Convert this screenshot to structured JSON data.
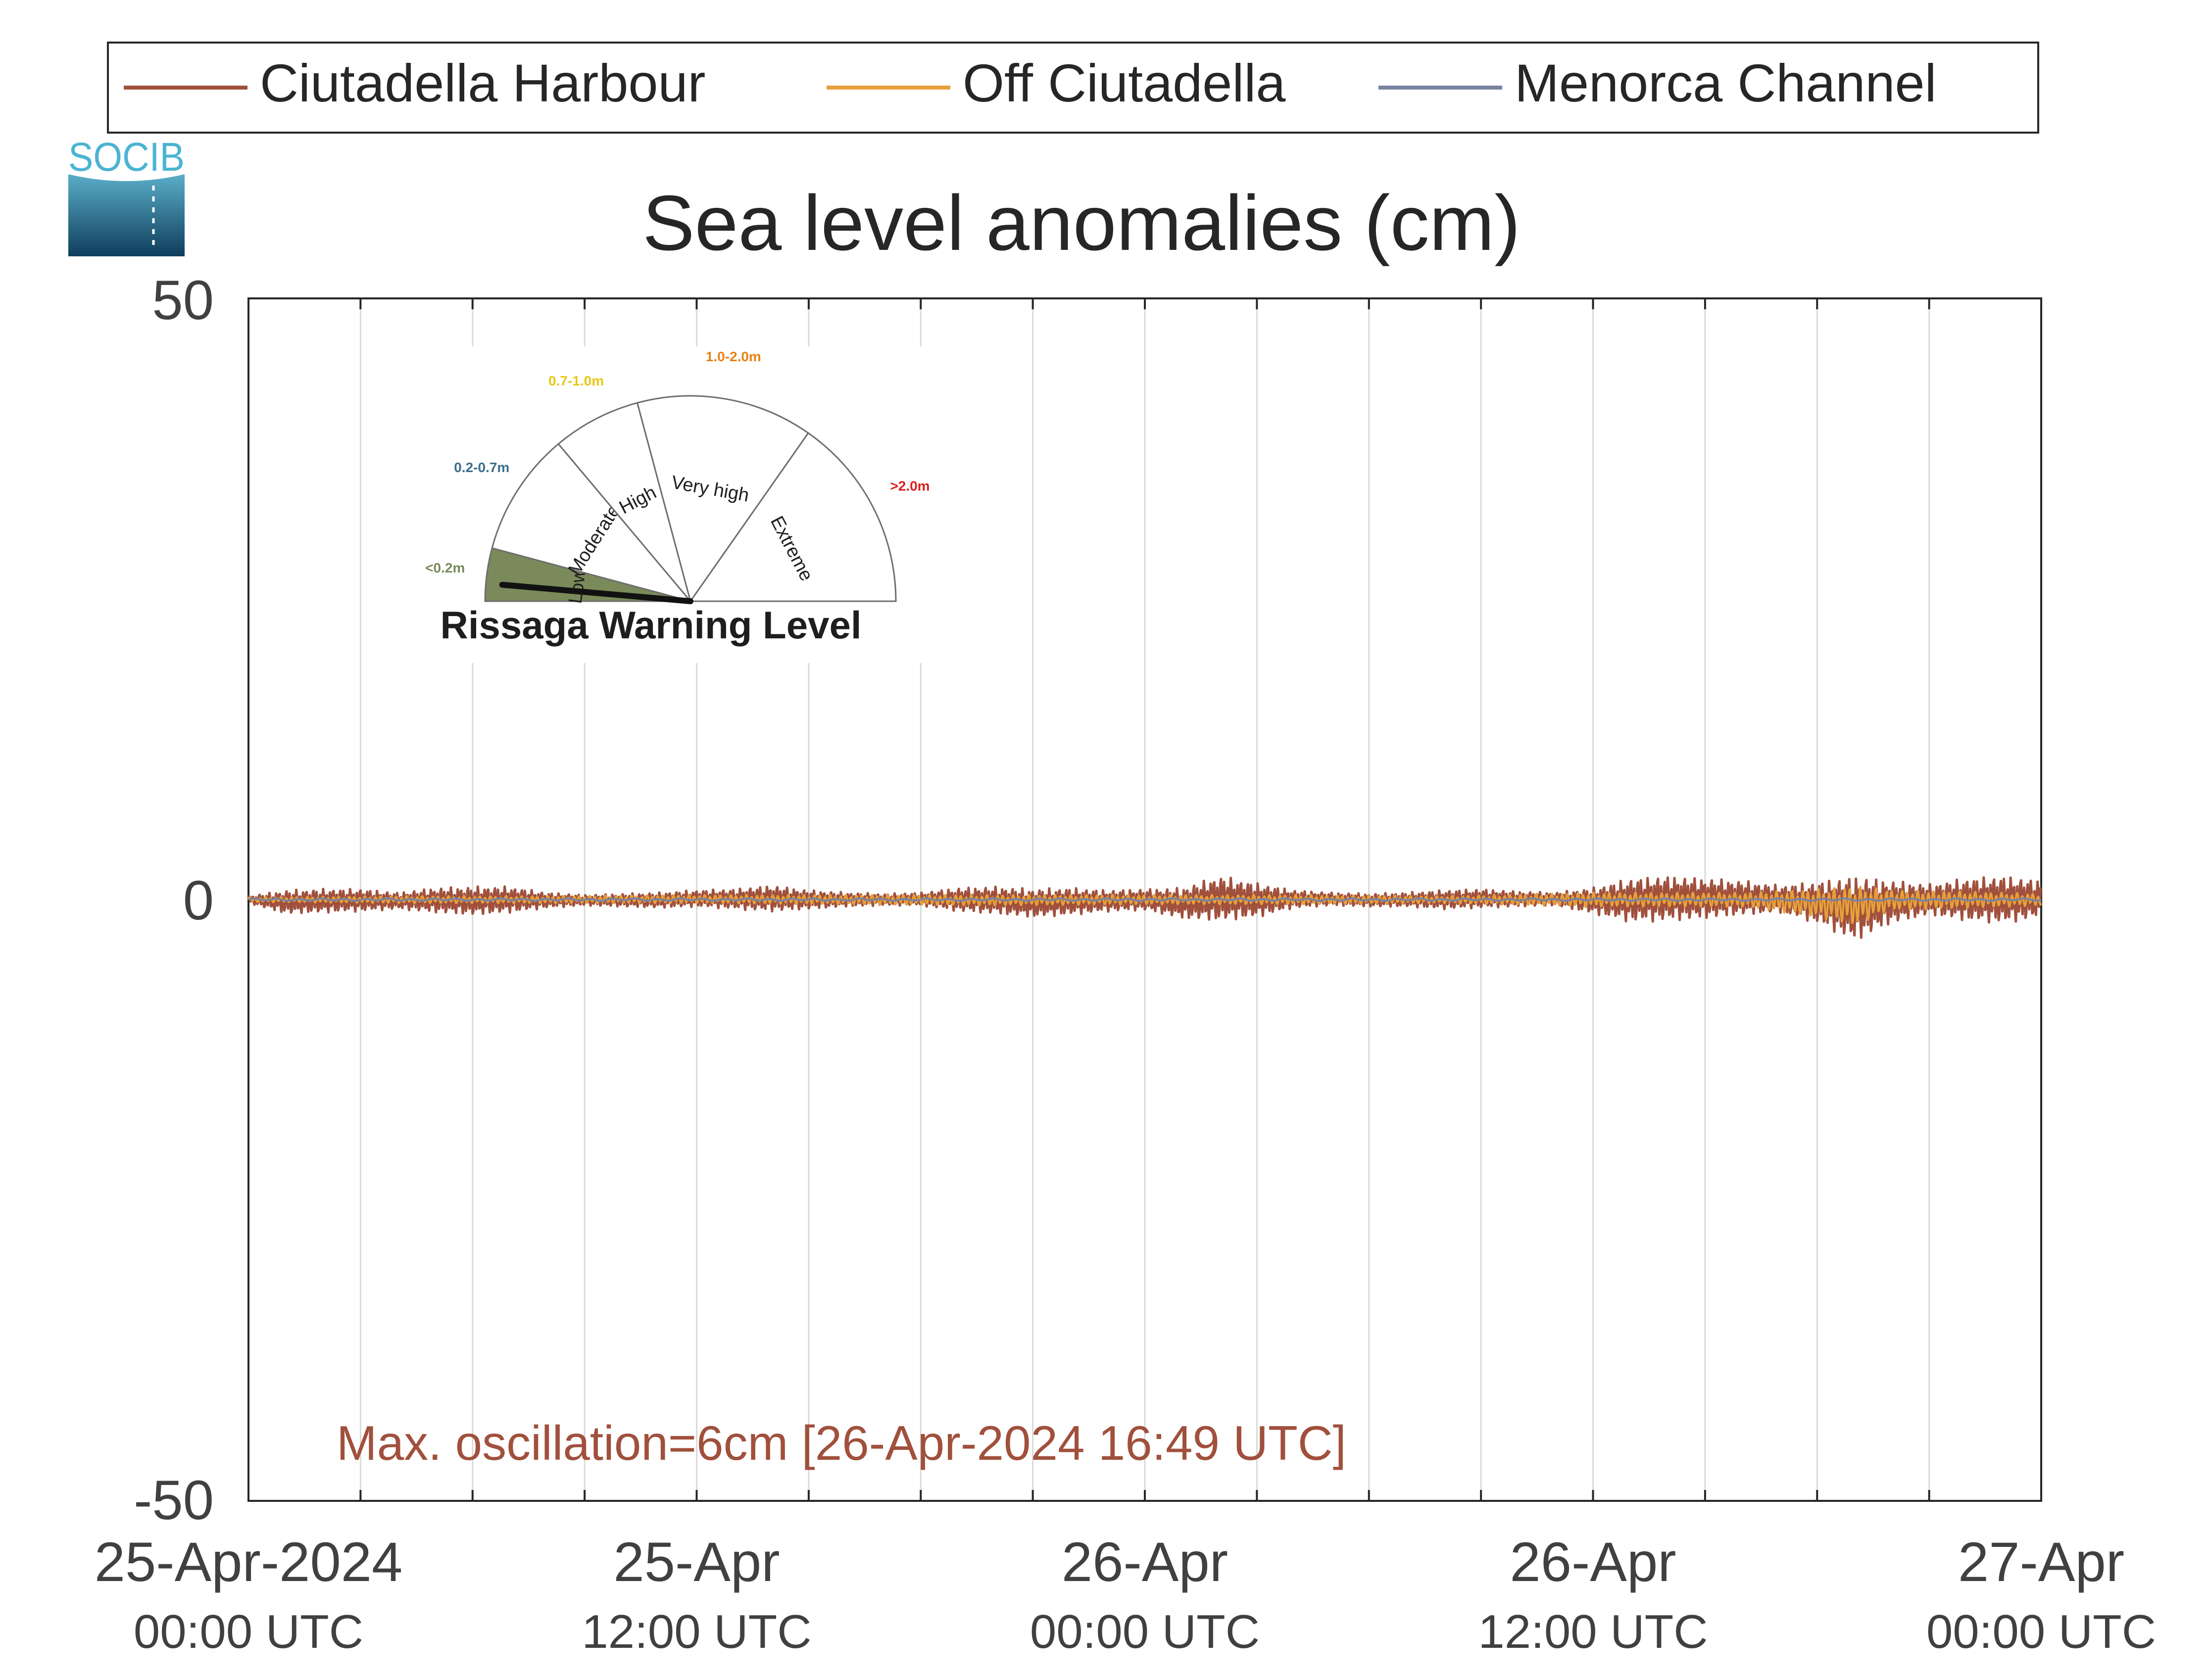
{
  "legend": {
    "items": [
      {
        "label": "Ciutadella Harbour",
        "color": "#a0503c"
      },
      {
        "label": "Off Ciutadella",
        "color": "#e6a03c"
      },
      {
        "label": "Menorca Channel",
        "color": "#7882a0"
      }
    ]
  },
  "logo": {
    "text": "SOCIB"
  },
  "chart_data": {
    "type": "line",
    "title": "Sea level anomalies (cm)",
    "xlabel": "",
    "ylabel": "",
    "ylim": [
      -50,
      50
    ],
    "y_ticks": [
      "50",
      "0",
      "-50"
    ],
    "x_range_hours": [
      0,
      48
    ],
    "x_ticks": [
      {
        "hour": 0,
        "line1": "25-Apr-2024",
        "line2": "00:00 UTC"
      },
      {
        "hour": 12,
        "line1": "25-Apr",
        "line2": "12:00 UTC"
      },
      {
        "hour": 24,
        "line1": "26-Apr",
        "line2": "00:00 UTC"
      },
      {
        "hour": 36,
        "line1": "26-Apr",
        "line2": "12:00 UTC"
      },
      {
        "hour": 48,
        "line1": "27-Apr",
        "line2": "00:00 UTC"
      }
    ],
    "grid_hours": [
      0,
      3,
      6,
      9,
      12,
      15,
      18,
      21,
      24,
      27,
      30,
      33,
      36,
      39,
      42,
      45,
      48
    ],
    "grid": true,
    "legend_position": "top",
    "annotation": {
      "text": "Max. oscillation=6cm [26-Apr-2024 16:49 UTC]",
      "color": "#a0503c"
    },
    "series": [
      {
        "name": "Ciutadella Harbour",
        "color": "#a0503c",
        "envelope_x_hours": [
          0,
          1,
          2,
          3,
          4,
          5,
          6,
          7,
          8,
          9,
          10,
          11,
          12,
          13,
          14,
          15,
          16,
          17,
          18,
          19,
          20,
          21,
          22,
          23,
          24,
          25,
          26,
          27,
          28,
          29,
          30,
          31,
          32,
          33,
          34,
          35,
          36,
          37,
          38,
          39,
          40,
          41,
          42,
          43,
          44,
          45,
          46,
          47,
          48
        ],
        "envelope_upper": [
          0.3,
          0.8,
          0.9,
          0.9,
          0.6,
          1.0,
          1.1,
          1.1,
          0.6,
          0.4,
          0.5,
          0.6,
          0.8,
          0.9,
          1.2,
          0.8,
          0.6,
          0.5,
          0.6,
          1.0,
          1.1,
          0.9,
          1.0,
          0.8,
          0.9,
          1.0,
          2.0,
          1.4,
          0.8,
          0.6,
          0.5,
          0.6,
          0.8,
          0.9,
          0.7,
          0.6,
          1.0,
          1.8,
          2.0,
          1.8,
          1.6,
          1.2,
          1.5,
          2.0,
          1.6,
          1.3,
          1.8,
          2.0,
          1.6
        ],
        "envelope_lower": [
          -0.3,
          -1.2,
          -1.1,
          -1.0,
          -0.8,
          -1.1,
          -1.3,
          -1.1,
          -0.7,
          -0.5,
          -0.6,
          -0.7,
          -0.6,
          -0.8,
          -1.0,
          -0.8,
          -0.6,
          -0.5,
          -0.5,
          -1.0,
          -1.2,
          -1.5,
          -1.3,
          -1.0,
          -0.9,
          -1.6,
          -1.8,
          -1.5,
          -0.7,
          -0.5,
          -0.6,
          -0.6,
          -0.8,
          -0.7,
          -0.6,
          -0.5,
          -1.2,
          -1.9,
          -1.8,
          -1.6,
          -1.3,
          -1.1,
          -2.0,
          -3.5,
          -2.0,
          -1.3,
          -1.8,
          -2.0,
          -1.5
        ]
      },
      {
        "name": "Off Ciutadella",
        "color": "#e6a03c",
        "envelope_x_hours": [
          0,
          4,
          8,
          12,
          16,
          20,
          24,
          28,
          32,
          36,
          40,
          42,
          43,
          44,
          46,
          48
        ],
        "envelope_upper": [
          0.2,
          0.3,
          0.3,
          0.4,
          0.4,
          0.4,
          0.4,
          0.4,
          0.3,
          0.6,
          0.6,
          0.9,
          1.2,
          0.8,
          0.7,
          0.5
        ],
        "envelope_lower": [
          -0.2,
          -0.3,
          -0.3,
          -0.3,
          -0.4,
          -0.5,
          -0.4,
          -0.4,
          -0.3,
          -0.6,
          -0.6,
          -1.5,
          -2.2,
          -0.9,
          -0.7,
          -0.5
        ]
      },
      {
        "name": "Menorca Channel",
        "color": "#7882a0",
        "envelope_x_hours": [
          0,
          12,
          24,
          36,
          48
        ],
        "envelope_upper": [
          0.1,
          0.1,
          0.1,
          0.1,
          0.1
        ],
        "envelope_lower": [
          -0.1,
          -0.1,
          -0.1,
          -0.1,
          -0.1
        ]
      }
    ]
  },
  "gauge": {
    "title": "Rissaga Warning Level",
    "needle_category": "Low",
    "sectors": [
      {
        "label": "Low",
        "range": "<0.2m",
        "range_color": "#7a8a5a",
        "fill": "#7a8a5a"
      },
      {
        "label": "Moderate",
        "range": "0.2-0.7m",
        "range_color": "#3c6e8c",
        "fill": "#ffffff"
      },
      {
        "label": "High",
        "range": "0.7-1.0m",
        "range_color": "#e6c814",
        "fill": "#ffffff"
      },
      {
        "label": "Very high",
        "range": "1.0-2.0m",
        "range_color": "#e68214",
        "fill": "#ffffff"
      },
      {
        "label": "Extreme",
        "range": ">2.0m",
        "range_color": "#dc1e1e",
        "fill": "#ffffff"
      }
    ]
  }
}
